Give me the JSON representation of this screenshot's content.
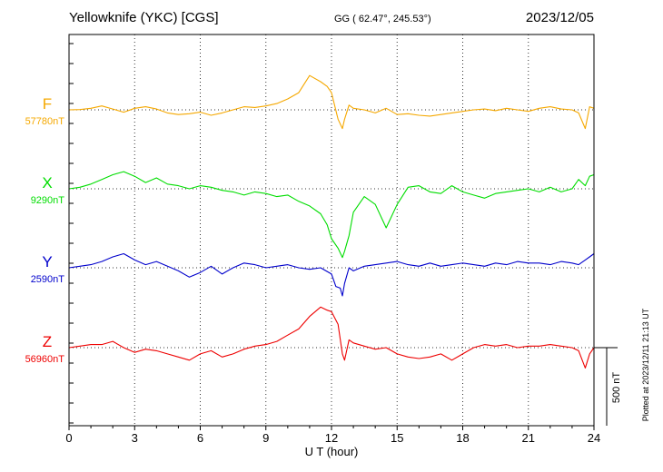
{
  "chart_data": {
    "type": "line",
    "title": "Yellowknife (YKC)  [CGS]",
    "subtitle": "GG ( 62.47°, 245.53°)",
    "date": "2023/12/05",
    "xlabel": "U T (hour)",
    "xlim": [
      0,
      24
    ],
    "x_ticks": [
      "0",
      "3",
      "6",
      "9",
      "12",
      "15",
      "18",
      "21",
      "24"
    ],
    "scale_bar_label": "500 nT",
    "scale_bar_nT": 500,
    "plotted_note": "Plotted at 2023/12/11 21:13 UT",
    "grid": true,
    "colors": {
      "F": "#f5a800",
      "X": "#00dd00",
      "Y": "#0000cc",
      "Z": "#ee0000"
    },
    "series": [
      {
        "name": "F",
        "baseline_label": "57780nT",
        "baseline_nT": 57780,
        "x": [
          0,
          0.5,
          1,
          1.5,
          2,
          2.5,
          3,
          3.5,
          4,
          4.5,
          5,
          5.5,
          6,
          6.5,
          7,
          7.5,
          8,
          8.5,
          9,
          9.5,
          10,
          10.5,
          11,
          11.5,
          11.8,
          12,
          12.3,
          12.5,
          12.6,
          12.8,
          13,
          13.5,
          14,
          14.5,
          15,
          15.5,
          16,
          16.5,
          17,
          17.5,
          18,
          18.5,
          19,
          19.5,
          20,
          20.5,
          21,
          21.5,
          22,
          22.5,
          23,
          23.3,
          23.6,
          23.8,
          24
        ],
        "values": [
          0,
          2,
          10,
          25,
          5,
          -15,
          10,
          20,
          5,
          -20,
          -30,
          -25,
          -15,
          -35,
          -20,
          0,
          20,
          15,
          25,
          40,
          70,
          110,
          220,
          180,
          150,
          110,
          -60,
          -120,
          -60,
          30,
          10,
          0,
          -20,
          10,
          -30,
          -25,
          -35,
          -40,
          -30,
          -20,
          -10,
          0,
          5,
          -5,
          10,
          0,
          -10,
          10,
          20,
          5,
          0,
          -20,
          -120,
          20,
          10
        ]
      },
      {
        "name": "X",
        "baseline_label": "9290nT",
        "baseline_nT": 9290,
        "x": [
          0,
          0.5,
          1,
          1.5,
          2,
          2.5,
          3,
          3.5,
          4,
          4.5,
          5,
          5.5,
          6,
          6.5,
          7,
          7.5,
          8,
          8.5,
          9,
          9.5,
          10,
          10.5,
          11,
          11.5,
          11.8,
          12,
          12.3,
          12.5,
          12.6,
          12.8,
          13,
          13.5,
          14,
          14.5,
          15,
          15.5,
          16,
          16.5,
          17,
          17.5,
          18,
          18.5,
          19,
          19.5,
          20,
          20.5,
          21,
          21.5,
          22,
          22.5,
          23,
          23.3,
          23.6,
          23.8,
          24
        ],
        "values": [
          0,
          10,
          30,
          60,
          90,
          110,
          80,
          40,
          70,
          30,
          20,
          0,
          20,
          10,
          -10,
          -20,
          -40,
          -20,
          -30,
          -50,
          -40,
          -80,
          -110,
          -160,
          -230,
          -320,
          -380,
          -440,
          -400,
          -300,
          -150,
          -50,
          -100,
          -250,
          -100,
          10,
          20,
          -20,
          -30,
          20,
          -20,
          -40,
          -60,
          -30,
          -20,
          -10,
          0,
          -20,
          10,
          -20,
          0,
          60,
          20,
          80,
          90
        ]
      },
      {
        "name": "Y",
        "baseline_label": "2590nT",
        "baseline_nT": 2590,
        "x": [
          0,
          0.5,
          1,
          1.5,
          2,
          2.5,
          3,
          3.5,
          4,
          4.5,
          5,
          5.5,
          6,
          6.5,
          7,
          7.5,
          8,
          8.5,
          9,
          9.5,
          10,
          10.5,
          11,
          11.5,
          12,
          12.2,
          12.4,
          12.5,
          12.6,
          12.8,
          13,
          13.5,
          14,
          14.5,
          15,
          15.5,
          16,
          16.5,
          17,
          17.5,
          18,
          18.5,
          19,
          19.5,
          20,
          20.5,
          21,
          21.5,
          22,
          22.5,
          23,
          23.3,
          23.6,
          23.8,
          24
        ],
        "values": [
          0,
          10,
          20,
          40,
          70,
          90,
          50,
          20,
          40,
          10,
          -20,
          -60,
          -30,
          10,
          -40,
          0,
          30,
          20,
          0,
          10,
          20,
          0,
          -10,
          0,
          -40,
          -120,
          -130,
          -180,
          -100,
          0,
          -20,
          10,
          20,
          30,
          40,
          20,
          10,
          30,
          10,
          20,
          30,
          20,
          10,
          30,
          20,
          40,
          30,
          30,
          20,
          40,
          30,
          20,
          50,
          70,
          90
        ]
      },
      {
        "name": "Z",
        "baseline_label": "56960nT",
        "baseline_nT": 56960,
        "x": [
          0,
          0.5,
          1,
          1.5,
          2,
          2.5,
          3,
          3.5,
          4,
          4.5,
          5,
          5.5,
          6,
          6.5,
          7,
          7.5,
          8,
          8.5,
          9,
          9.5,
          10,
          10.5,
          11,
          11.5,
          11.8,
          12,
          12.3,
          12.5,
          12.6,
          12.8,
          13,
          13.5,
          14,
          14.5,
          15,
          15.5,
          16,
          16.5,
          17,
          17.5,
          18,
          18.5,
          19,
          19.5,
          20,
          20.5,
          21,
          21.5,
          22,
          22.5,
          23,
          23.3,
          23.6,
          23.8,
          24
        ],
        "values": [
          0,
          10,
          20,
          20,
          40,
          0,
          -30,
          -10,
          -20,
          -40,
          -60,
          -80,
          -40,
          -20,
          -60,
          -40,
          -10,
          10,
          20,
          40,
          80,
          120,
          200,
          260,
          240,
          230,
          150,
          -40,
          -80,
          50,
          30,
          10,
          -10,
          0,
          -40,
          -60,
          -70,
          -60,
          -40,
          -80,
          -40,
          0,
          20,
          10,
          20,
          0,
          10,
          10,
          20,
          10,
          0,
          -20,
          -130,
          -40,
          0
        ]
      }
    ]
  }
}
